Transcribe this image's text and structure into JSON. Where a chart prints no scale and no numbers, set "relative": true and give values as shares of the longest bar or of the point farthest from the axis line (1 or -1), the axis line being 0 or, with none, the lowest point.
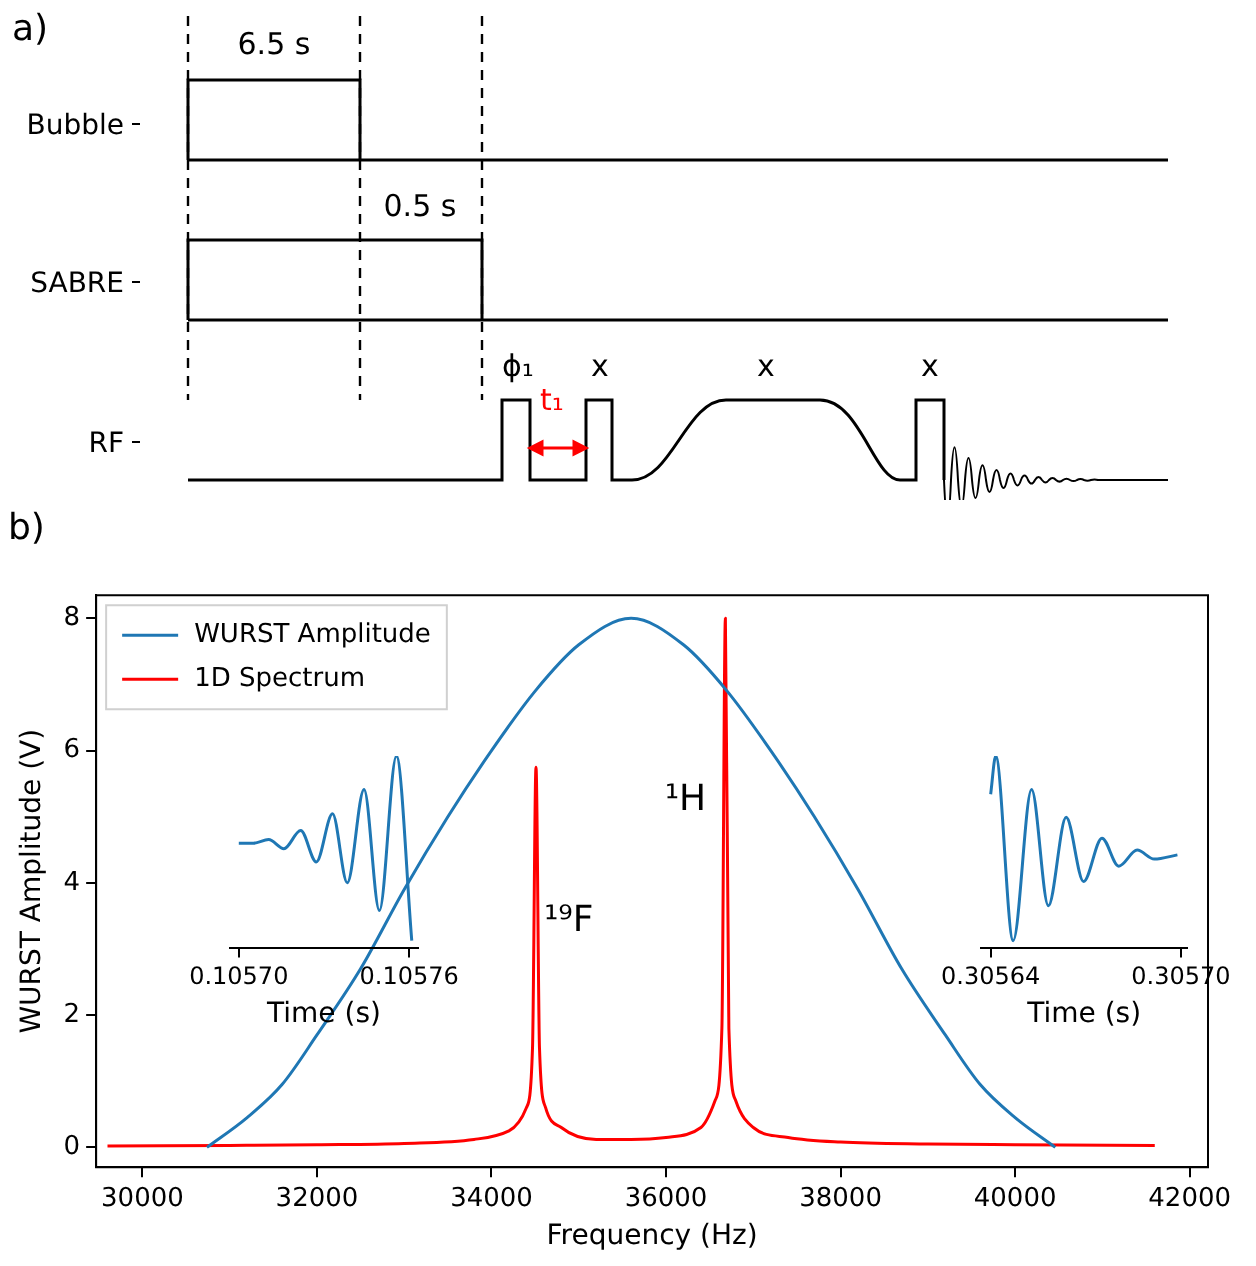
{
  "chart_data": [
    {
      "type": "other",
      "title": "a)",
      "categories": [
        "Bubble",
        "SABRE",
        "RF"
      ],
      "annotations": [
        "6.5 s",
        "0.5 s",
        "ϕ₁",
        "x",
        "x",
        "x",
        "t₁"
      ]
    },
    {
      "type": "line",
      "title": "b)",
      "xlabel": "Frequency (Hz)",
      "ylabel": "WURST Amplitude (V)",
      "xlim": [
        29470,
        42210
      ],
      "ylim": [
        -0.3,
        8.35
      ],
      "xticks": [
        30000,
        32000,
        34000,
        36000,
        38000,
        40000,
        42000
      ],
      "yticks": [
        0,
        2,
        4,
        6,
        8
      ],
      "legend": "top left",
      "annotations": [
        "¹⁹F",
        "¹H"
      ],
      "series": [
        {
          "name": "WURST Amplitude",
          "color": "#1f77b4",
          "x": [
            30740,
            31200,
            31600,
            32000,
            32500,
            33000,
            33500,
            34000,
            34500,
            35000,
            35600,
            36200,
            36700,
            37200,
            37700,
            38200,
            38700,
            39200,
            39600,
            40000,
            40460
          ],
          "values": [
            0,
            0.45,
            0.95,
            1.7,
            2.7,
            3.9,
            5.0,
            6.0,
            6.9,
            7.6,
            8.0,
            7.6,
            6.9,
            6.0,
            5.0,
            3.9,
            2.7,
            1.7,
            0.95,
            0.45,
            0
          ]
        },
        {
          "name": "1D Spectrum",
          "color": "#ff0000",
          "x": [
            29600,
            31000,
            32000,
            33000,
            33800,
            34200,
            34400,
            34470,
            34510,
            34550,
            34620,
            34800,
            35200,
            35600,
            36000,
            36400,
            36560,
            36640,
            36680,
            36720,
            36800,
            37000,
            37400,
            38000,
            39000,
            40000,
            41600
          ],
          "values": [
            0.02,
            0.03,
            0.04,
            0.06,
            0.12,
            0.25,
            0.6,
            1.5,
            5.75,
            1.5,
            0.6,
            0.3,
            0.12,
            0.12,
            0.15,
            0.3,
            0.7,
            1.8,
            8.0,
            1.8,
            0.7,
            0.3,
            0.15,
            0.08,
            0.05,
            0.04,
            0.03
          ]
        }
      ]
    },
    {
      "type": "line",
      "xlabel": "Time (s)",
      "relative": true,
      "xlim": [
        0.105697,
        0.105763
      ],
      "xticks": [
        {
          "value": 0.1057,
          "label": "0.10570"
        },
        {
          "value": 0.10576,
          "label": "0.10576"
        }
      ],
      "series": [
        {
          "color": "#1f77b4",
          "x": [
            0.1057,
            0.1057052,
            0.1057105,
            0.1057159,
            0.1057218,
            0.1057273,
            0.105733,
            0.1057382,
            0.1057441,
            0.1057495,
            0.1057555,
            0.1057609
          ],
          "values": [
            0.545,
            0.545,
            0.564,
            0.516,
            0.611,
            0.447,
            0.698,
            0.338,
            0.825,
            0.193,
            1.0,
            0.036
          ]
        }
      ]
    },
    {
      "type": "line",
      "xlabel": "Time (s)",
      "relative": true,
      "xlim": [
        0.305637,
        0.305702
      ],
      "xticks": [
        {
          "value": 0.30564,
          "label": "0.30564"
        },
        {
          "value": 0.3057,
          "label": "0.30570"
        }
      ],
      "series": [
        {
          "color": "#1f77b4",
          "x": [
            0.30564,
            0.3056416,
            0.3056471,
            0.3056529,
            0.3056582,
            0.3056638,
            0.3056693,
            0.3056751,
            0.3056804,
            0.3056862,
            0.3056916,
            0.3056989
          ],
          "values": [
            0.8,
            1.0,
            0.036,
            0.825,
            0.218,
            0.68,
            0.345,
            0.571,
            0.425,
            0.509,
            0.462,
            0.484
          ]
        }
      ]
    }
  ]
}
